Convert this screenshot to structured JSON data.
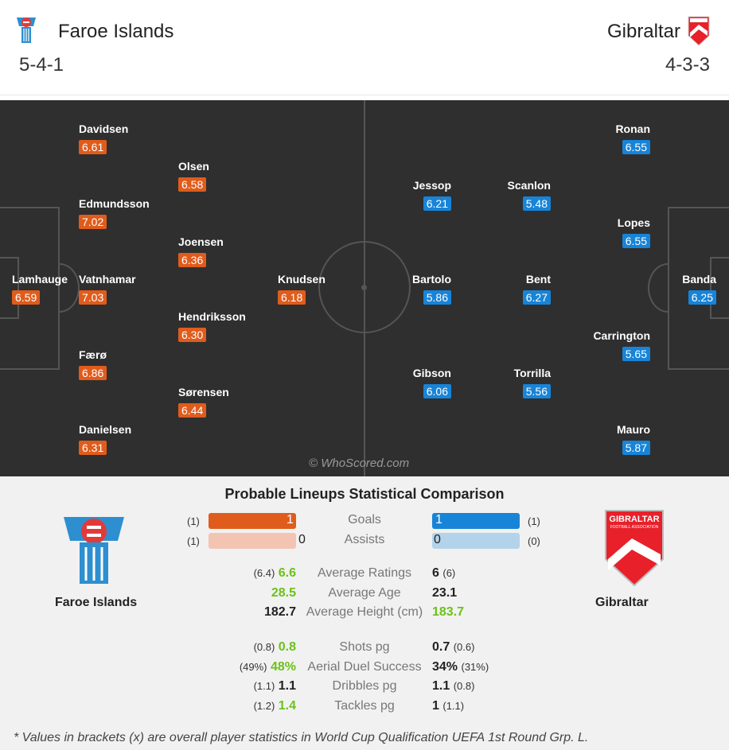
{
  "header": {
    "home": {
      "name": "Faroe Islands",
      "formation": "5-4-1"
    },
    "away": {
      "name": "Gibraltar",
      "formation": "4-3-3"
    }
  },
  "colors": {
    "home_rating": "#e05c1c",
    "away_rating": "#1784d8",
    "better_stat": "#6cc119"
  },
  "pitch": {
    "watermark": "© WhoScored.com",
    "home_players": [
      {
        "name": "Davidsen",
        "rating": "6.61"
      },
      {
        "name": "Olsen",
        "rating": "6.58"
      },
      {
        "name": "Edmundsson",
        "rating": "7.02"
      },
      {
        "name": "Joensen",
        "rating": "6.36"
      },
      {
        "name": "Lamhauge",
        "rating": "6.59"
      },
      {
        "name": "Vatnhamar",
        "rating": "7.03"
      },
      {
        "name": "Knudsen",
        "rating": "6.18"
      },
      {
        "name": "Hendriksson",
        "rating": "6.30"
      },
      {
        "name": "Færø",
        "rating": "6.86"
      },
      {
        "name": "Sørensen",
        "rating": "6.44"
      },
      {
        "name": "Danielsen",
        "rating": "6.31"
      }
    ],
    "away_players": [
      {
        "name": "Ronan",
        "rating": "6.55"
      },
      {
        "name": "Jessop",
        "rating": "6.21"
      },
      {
        "name": "Scanlon",
        "rating": "5.48"
      },
      {
        "name": "Lopes",
        "rating": "6.55"
      },
      {
        "name": "Bartolo",
        "rating": "5.86"
      },
      {
        "name": "Bent",
        "rating": "6.27"
      },
      {
        "name": "Banda",
        "rating": "6.25"
      },
      {
        "name": "Carrington",
        "rating": "5.65"
      },
      {
        "name": "Gibson",
        "rating": "6.06"
      },
      {
        "name": "Torrilla",
        "rating": "5.56"
      },
      {
        "name": "Mauro",
        "rating": "5.87"
      }
    ]
  },
  "comparison": {
    "title": "Probable Lineups Statistical Comparison",
    "home_team": "Faroe Islands",
    "away_team": "Gibraltar",
    "away_logo_text": "GIBRALTAR",
    "away_logo_subtext": "FOOTBALL ASSOCIATION",
    "bars": [
      {
        "label": "Goals",
        "home": "1",
        "home_brk": "(1)",
        "away": "1",
        "away_brk": "(1)",
        "home_fill": 1.0,
        "away_fill": 1.0
      },
      {
        "label": "Assists",
        "home": "0",
        "home_brk": "(1)",
        "away": "0",
        "away_brk": "(0)",
        "home_fill": 0.0,
        "away_fill": 0.0
      }
    ],
    "stats": [
      {
        "label": "Average Ratings",
        "home_brk": "(6.4)",
        "home": "6.6",
        "away": "6",
        "away_brk": "(6)",
        "better": "home"
      },
      {
        "label": "Average Age",
        "home_brk": "",
        "home": "28.5",
        "away": "23.1",
        "away_brk": "",
        "better": "home"
      },
      {
        "label": "Average Height (cm)",
        "home_brk": "",
        "home": "182.7",
        "away": "183.7",
        "away_brk": "",
        "better": "away"
      },
      {
        "label": "Shots pg",
        "home_brk": "(0.8)",
        "home": "0.8",
        "away": "0.7",
        "away_brk": "(0.6)",
        "better": "home"
      },
      {
        "label": "Aerial Duel Success",
        "home_brk": "(49%)",
        "home": "48%",
        "away": "34%",
        "away_brk": "(31%)",
        "better": "home"
      },
      {
        "label": "Dribbles pg",
        "home_brk": "(1.1)",
        "home": "1.1",
        "away": "1.1",
        "away_brk": "(0.8)",
        "better": "none"
      },
      {
        "label": "Tackles pg",
        "home_brk": "(1.2)",
        "home": "1.4",
        "away": "1",
        "away_brk": "(1.1)",
        "better": "home"
      }
    ],
    "footnote": "* Values in brackets (x) are overall player statistics in World Cup Qualification UEFA 1st Round Grp. L."
  }
}
